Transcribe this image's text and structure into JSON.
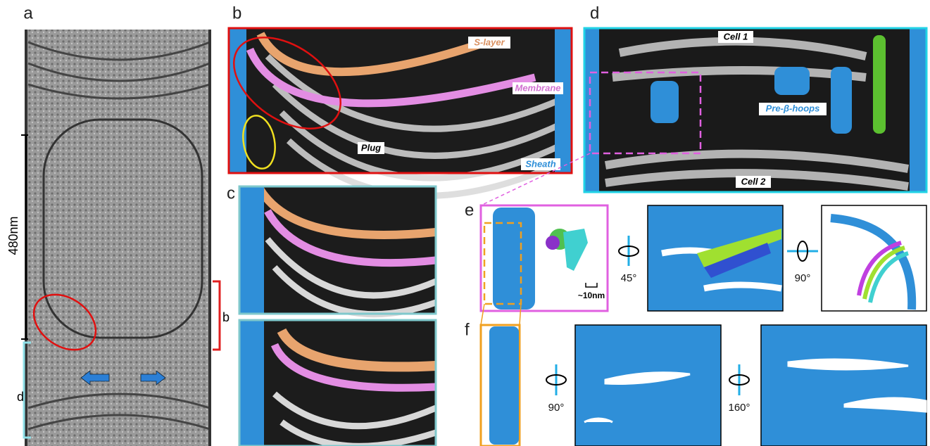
{
  "panels": {
    "a": {
      "label": "a",
      "scale_bar": "480nm",
      "bracket_b": "b",
      "bracket_d": "d"
    },
    "b": {
      "label": "b",
      "s_layer": "S-layer",
      "membrane": "Membrane",
      "plug": "Plug",
      "sheath": "Sheath"
    },
    "c": {
      "label": "c"
    },
    "d": {
      "label": "d",
      "cell1": "Cell 1",
      "cell2": "Cell 2",
      "hoops": "Pre-β-hoops"
    },
    "e": {
      "label": "e",
      "scale": "~10nm",
      "rot1": "45°",
      "rot2": "90°"
    },
    "f": {
      "label": "f",
      "rot1": "90°",
      "rot2": "160°"
    }
  }
}
